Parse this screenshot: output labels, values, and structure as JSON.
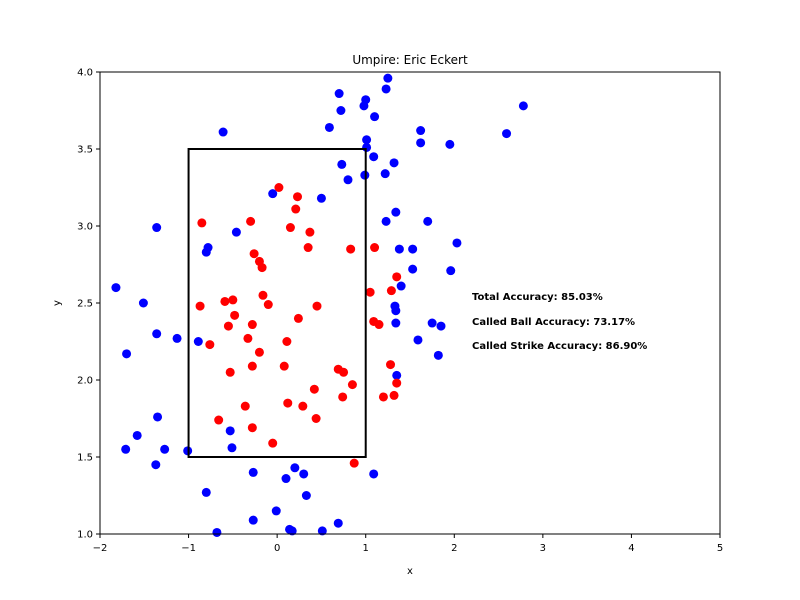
{
  "chart_data": {
    "type": "scatter",
    "title": "Umpire: Eric Eckert",
    "xlabel": "x",
    "ylabel": "y",
    "xlim": [
      -2,
      5
    ],
    "ylim": [
      1.0,
      4.0
    ],
    "xticks": [
      "−2",
      "−1",
      "0",
      "1",
      "2",
      "3",
      "4",
      "5"
    ],
    "yticks": [
      "1.0",
      "1.5",
      "2.0",
      "2.5",
      "3.0",
      "3.5",
      "4.0"
    ],
    "grid": false,
    "strike_zone": {
      "x": [
        -1,
        1
      ],
      "y": [
        1.5,
        3.5
      ],
      "color": "#000000"
    },
    "annotations": [
      "Total Accuracy: 85.03%",
      "Called Ball Accuracy: 73.17%",
      "Called Strike Accuracy: 86.90%"
    ],
    "series": [
      {
        "color": "#0000ff",
        "points": [
          [
            -1.82,
            2.6
          ],
          [
            -1.7,
            2.17
          ],
          [
            -1.71,
            1.55
          ],
          [
            -1.58,
            1.64
          ],
          [
            -1.51,
            2.5
          ],
          [
            -1.36,
            2.99
          ],
          [
            -1.36,
            2.3
          ],
          [
            -1.35,
            1.76
          ],
          [
            -1.37,
            1.45
          ],
          [
            -1.27,
            1.55
          ],
          [
            -1.13,
            2.27
          ],
          [
            -1.01,
            1.54
          ],
          [
            -0.89,
            2.25
          ],
          [
            -0.8,
            2.83
          ],
          [
            -0.78,
            2.86
          ],
          [
            -0.8,
            1.27
          ],
          [
            -0.68,
            1.01
          ],
          [
            -0.61,
            3.61
          ],
          [
            -0.53,
            1.67
          ],
          [
            -0.51,
            1.56
          ],
          [
            -0.46,
            2.96
          ],
          [
            -0.27,
            1.4
          ],
          [
            -0.27,
            1.09
          ],
          [
            -0.05,
            3.21
          ],
          [
            -0.01,
            1.15
          ],
          [
            0.1,
            1.36
          ],
          [
            0.14,
            1.03
          ],
          [
            0.17,
            1.02
          ],
          [
            0.2,
            1.43
          ],
          [
            0.3,
            1.39
          ],
          [
            0.33,
            1.25
          ],
          [
            0.5,
            3.18
          ],
          [
            0.51,
            1.02
          ],
          [
            0.59,
            3.64
          ],
          [
            0.7,
            3.86
          ],
          [
            0.72,
            3.75
          ],
          [
            0.73,
            3.4
          ],
          [
            0.69,
            1.07
          ],
          [
            0.8,
            3.3
          ],
          [
            0.98,
            3.78
          ],
          [
            1.0,
            3.82
          ],
          [
            0.99,
            3.33
          ],
          [
            1.01,
            3.56
          ],
          [
            1.01,
            3.51
          ],
          [
            1.09,
            3.45
          ],
          [
            1.1,
            3.71
          ],
          [
            1.09,
            1.39
          ],
          [
            1.22,
            3.34
          ],
          [
            1.23,
            3.89
          ],
          [
            1.25,
            3.96
          ],
          [
            1.23,
            3.03
          ],
          [
            1.32,
            3.41
          ],
          [
            1.34,
            3.09
          ],
          [
            1.38,
            2.85
          ],
          [
            1.4,
            2.61
          ],
          [
            1.33,
            2.48
          ],
          [
            1.34,
            2.45
          ],
          [
            1.34,
            2.37
          ],
          [
            1.35,
            2.03
          ],
          [
            1.53,
            2.85
          ],
          [
            1.53,
            2.72
          ],
          [
            1.59,
            2.26
          ],
          [
            1.62,
            3.62
          ],
          [
            1.62,
            3.54
          ],
          [
            1.7,
            3.03
          ],
          [
            1.75,
            2.37
          ],
          [
            1.82,
            2.16
          ],
          [
            1.85,
            2.35
          ],
          [
            1.95,
            3.53
          ],
          [
            1.96,
            2.71
          ],
          [
            2.03,
            2.89
          ],
          [
            2.59,
            3.6
          ],
          [
            2.78,
            3.78
          ]
        ]
      },
      {
        "color": "#ff0000",
        "points": [
          [
            -0.85,
            3.02
          ],
          [
            -0.87,
            2.48
          ],
          [
            -0.76,
            2.23
          ],
          [
            -0.66,
            1.74
          ],
          [
            -0.59,
            2.51
          ],
          [
            -0.55,
            2.35
          ],
          [
            -0.53,
            2.05
          ],
          [
            -0.5,
            2.52
          ],
          [
            -0.48,
            2.42
          ],
          [
            -0.36,
            1.83
          ],
          [
            -0.33,
            2.27
          ],
          [
            -0.3,
            3.03
          ],
          [
            -0.28,
            2.09
          ],
          [
            -0.28,
            2.36
          ],
          [
            -0.28,
            1.69
          ],
          [
            -0.26,
            2.82
          ],
          [
            -0.2,
            2.77
          ],
          [
            -0.2,
            2.18
          ],
          [
            -0.17,
            2.73
          ],
          [
            -0.16,
            2.55
          ],
          [
            -0.1,
            2.49
          ],
          [
            -0.05,
            1.59
          ],
          [
            0.02,
            3.25
          ],
          [
            0.08,
            2.09
          ],
          [
            0.11,
            2.25
          ],
          [
            0.12,
            1.85
          ],
          [
            0.15,
            2.99
          ],
          [
            0.21,
            3.11
          ],
          [
            0.23,
            3.19
          ],
          [
            0.24,
            2.4
          ],
          [
            0.29,
            1.83
          ],
          [
            0.35,
            2.86
          ],
          [
            0.37,
            2.96
          ],
          [
            0.42,
            1.94
          ],
          [
            0.44,
            1.75
          ],
          [
            0.45,
            2.48
          ],
          [
            0.69,
            2.07
          ],
          [
            0.74,
            1.89
          ],
          [
            0.75,
            2.05
          ],
          [
            0.83,
            2.85
          ],
          [
            0.85,
            1.97
          ],
          [
            0.87,
            1.46
          ],
          [
            1.05,
            2.57
          ],
          [
            1.09,
            2.38
          ],
          [
            1.1,
            2.86
          ],
          [
            1.15,
            2.36
          ],
          [
            1.2,
            1.89
          ],
          [
            1.28,
            2.1
          ],
          [
            1.29,
            2.58
          ],
          [
            1.32,
            1.9
          ],
          [
            1.35,
            2.67
          ],
          [
            1.35,
            1.98
          ]
        ]
      }
    ]
  }
}
